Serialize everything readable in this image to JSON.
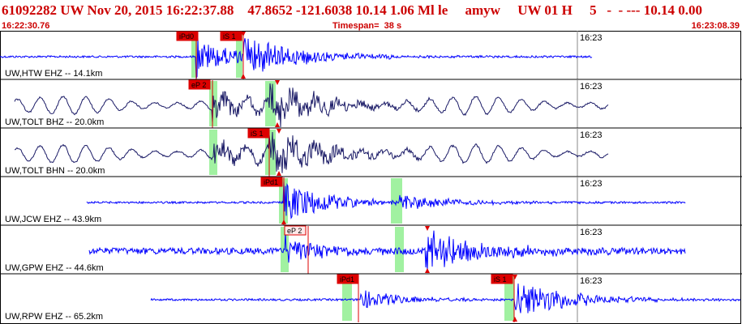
{
  "header": {
    "title": "61092282 UW Nov 20, 2015 16:22:37.88    47.8652 -121.6038 10.14 1.06 Ml le     amyw     UW 01 H     5   -  - --- 10.14 0.00",
    "start_time": "16:22:30.76",
    "timespan": "Timespan=  38 s",
    "end_time": "16:23:08.39"
  },
  "colors": {
    "header_text": "#cc0000",
    "trace_blue": "#0000ff",
    "trace_dark": "#1a1a66",
    "pick_red": "#dd0000",
    "window_green": "#90ee90",
    "border": "#000000"
  },
  "channels": [
    {
      "label": "UW,HTW EHZ -- 14.1km",
      "minute_marker": "16:23",
      "picks": [
        {
          "label": "iPd0",
          "style": "solid"
        },
        {
          "label": "iS 1",
          "style": "solid"
        }
      ]
    },
    {
      "label": "UW,TOLT BHZ -- 20.0km",
      "minute_marker": "16:23",
      "picks": [
        {
          "label": "eP 2",
          "style": "solid"
        }
      ]
    },
    {
      "label": "UW,TOLT BHN -- 20.0km",
      "minute_marker": "16:23",
      "picks": [
        {
          "label": "iS 1",
          "style": "solid"
        }
      ]
    },
    {
      "label": "UW,JCW EHZ -- 43.9km",
      "minute_marker": "16:23",
      "picks": [
        {
          "label": "iPd1",
          "style": "solid"
        }
      ]
    },
    {
      "label": "UW,GPW EHZ -- 44.6km",
      "minute_marker": "16:23",
      "picks": [
        {
          "label": "eP 2",
          "style": "outline"
        }
      ]
    },
    {
      "label": "UW,RPW EHZ -- 65.2km",
      "minute_marker": "16:23",
      "picks": [
        {
          "label": "iPd1",
          "style": "solid"
        },
        {
          "label": "iS 1",
          "style": "solid"
        }
      ]
    }
  ]
}
